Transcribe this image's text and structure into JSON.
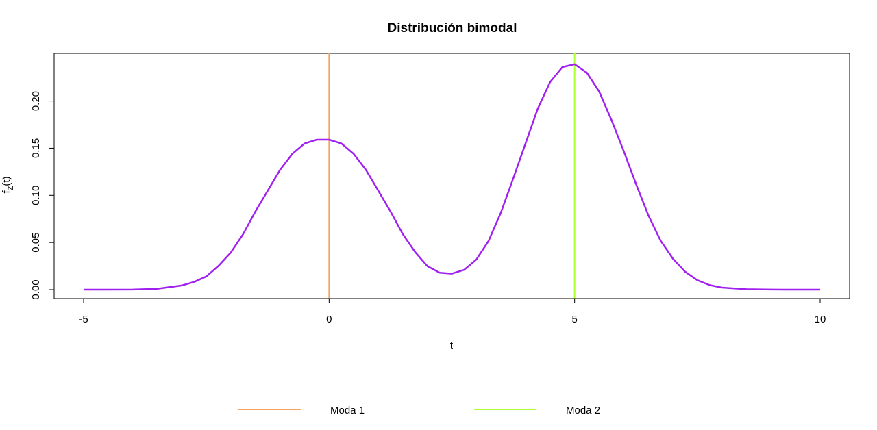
{
  "chart_data": {
    "type": "line",
    "title": "Distribución bimodal",
    "xlabel": "t",
    "ylabel": {
      "base": "f",
      "sub": "Z",
      "rest": "(t)"
    },
    "xlim": [
      -5,
      10
    ],
    "ylim": [
      0,
      0.24
    ],
    "x_ticks": [
      -5,
      0,
      5,
      10
    ],
    "y_ticks": [
      0.0,
      0.05,
      0.1,
      0.15,
      0.2
    ],
    "x_tick_labels": [
      "-5",
      "0",
      "5",
      "10"
    ],
    "y_tick_labels": [
      "0.00",
      "0.05",
      "0.10",
      "0.15",
      "0.20"
    ],
    "grid": false,
    "legend_position": "bottom",
    "series": [
      {
        "color": "#a020f0",
        "x": [
          -5.0,
          -4.5,
          -4.0,
          -3.5,
          -3.0,
          -2.75,
          -2.5,
          -2.25,
          -2.0,
          -1.75,
          -1.5,
          -1.25,
          -1.0,
          -0.75,
          -0.5,
          -0.25,
          0.0,
          0.25,
          0.5,
          0.75,
          1.0,
          1.25,
          1.5,
          1.75,
          2.0,
          2.25,
          2.5,
          2.75,
          3.0,
          3.25,
          3.5,
          3.75,
          4.0,
          4.25,
          4.5,
          4.75,
          5.0,
          5.25,
          5.5,
          5.75,
          6.0,
          6.25,
          6.5,
          6.75,
          7.0,
          7.25,
          7.5,
          7.75,
          8.0,
          8.5,
          9.0,
          9.5,
          10.0
        ],
        "y": [
          0.0,
          0.0,
          0.0001,
          0.0009,
          0.0044,
          0.0082,
          0.014,
          0.0254,
          0.0395,
          0.059,
          0.083,
          0.105,
          0.127,
          0.144,
          0.155,
          0.159,
          0.159,
          0.155,
          0.144,
          0.127,
          0.105,
          0.083,
          0.059,
          0.04,
          0.025,
          0.018,
          0.017,
          0.021,
          0.032,
          0.052,
          0.082,
          0.118,
          0.155,
          0.192,
          0.22,
          0.236,
          0.239,
          0.23,
          0.21,
          0.18,
          0.147,
          0.112,
          0.079,
          0.052,
          0.033,
          0.019,
          0.01,
          0.0048,
          0.0022,
          0.0004,
          0.0001,
          0.0,
          0.0
        ]
      }
    ],
    "vlines": [
      {
        "name": "Moda 1",
        "x": 0,
        "color": "#f4a460"
      },
      {
        "name": "Moda 2",
        "x": 5,
        "color": "#adff2f"
      }
    ]
  }
}
